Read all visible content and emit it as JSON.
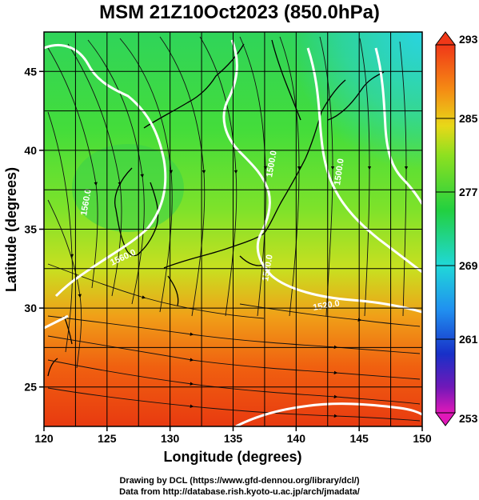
{
  "title": "MSM 21Z10Oct2023 (850.0hPa)",
  "axes": {
    "xlabel": "Longitude (degrees)",
    "ylabel": "Latitude  (degrees)",
    "xticks": [
      "120",
      "125",
      "130",
      "135",
      "140",
      "145",
      "150"
    ],
    "yticks": [
      "25",
      "30",
      "35",
      "40",
      "45"
    ],
    "xlim": [
      120,
      150
    ],
    "ylim": [
      22.5,
      47.5
    ]
  },
  "colorbar": {
    "ticks": [
      "293",
      "285",
      "277",
      "269",
      "261",
      "253"
    ],
    "range": [
      253,
      293
    ]
  },
  "contour_labels": [
    "1560.0",
    "1560.0",
    "1500.0",
    "1500.0",
    "1520.0",
    "1520.0"
  ],
  "credits": {
    "line1": "Drawing by DCL (https://www.gfd-dennou.org/library/dcl/)",
    "line2": "Data from http://database.rish.kyoto-u.ac.jp/arch/jmadata/"
  },
  "chart_data": {
    "type": "heatmap",
    "title": "MSM 21Z10Oct2023 (850.0hPa)",
    "xlabel": "Longitude (degrees)",
    "ylabel": "Latitude  (degrees)",
    "xlim": [
      120,
      150
    ],
    "ylim": [
      22.5,
      47.5
    ],
    "colorbar_range": [
      253,
      293
    ],
    "colorbar_ticks": [
      293,
      285,
      277,
      269,
      261,
      253
    ],
    "grid": true,
    "overlays": [
      "streamlines",
      "geopotential height contours (white)",
      "coastlines"
    ],
    "contour_values": [
      1500.0,
      1520.0,
      1560.0
    ]
  }
}
